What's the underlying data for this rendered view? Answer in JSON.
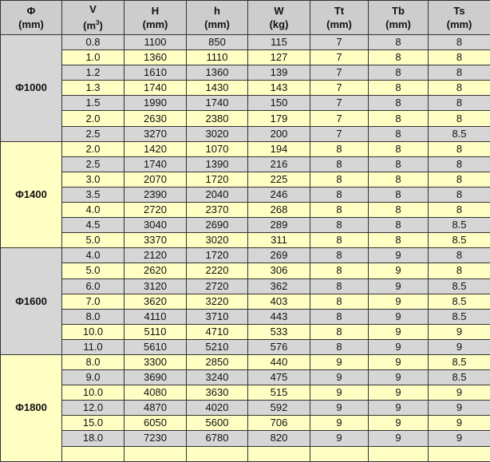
{
  "headers": [
    {
      "name": "Φ",
      "unit": "(mm)"
    },
    {
      "name": "V",
      "unit_pre": "(m",
      "unit_sup": "3",
      "unit_post": ")"
    },
    {
      "name": "H",
      "unit": "(mm)"
    },
    {
      "name": "h",
      "unit": "(mm)"
    },
    {
      "name": "W",
      "unit": "(kg)"
    },
    {
      "name": "Tt",
      "unit": "(mm)"
    },
    {
      "name": "Tb",
      "unit": "(mm)"
    },
    {
      "name": "Ts",
      "unit": "(mm)"
    }
  ],
  "groups": [
    {
      "label": "Φ1000",
      "rows": [
        [
          "0.8",
          "1100",
          "850",
          "115",
          "7",
          "8",
          "8"
        ],
        [
          "1.0",
          "1360",
          "1110",
          "127",
          "7",
          "8",
          "8"
        ],
        [
          "1.2",
          "1610",
          "1360",
          "139",
          "7",
          "8",
          "8"
        ],
        [
          "1.3",
          "1740",
          "1430",
          "143",
          "7",
          "8",
          "8"
        ],
        [
          "1.5",
          "1990",
          "1740",
          "150",
          "7",
          "8",
          "8"
        ],
        [
          "2.0",
          "2630",
          "2380",
          "179",
          "7",
          "8",
          "8"
        ],
        [
          "2.5",
          "3270",
          "3020",
          "200",
          "7",
          "8",
          "8.5"
        ]
      ]
    },
    {
      "label": "Φ1400",
      "rows": [
        [
          "2.0",
          "1420",
          "1070",
          "194",
          "8",
          "8",
          "8"
        ],
        [
          "2.5",
          "1740",
          "1390",
          "216",
          "8",
          "8",
          "8"
        ],
        [
          "3.0",
          "2070",
          "1720",
          "225",
          "8",
          "8",
          "8"
        ],
        [
          "3.5",
          "2390",
          "2040",
          "246",
          "8",
          "8",
          "8"
        ],
        [
          "4.0",
          "2720",
          "2370",
          "268",
          "8",
          "8",
          "8"
        ],
        [
          "4.5",
          "3040",
          "2690",
          "289",
          "8",
          "8",
          "8.5"
        ],
        [
          "5.0",
          "3370",
          "3020",
          "311",
          "8",
          "8",
          "8.5"
        ]
      ]
    },
    {
      "label": "Φ1600",
      "rows": [
        [
          "4.0",
          "2120",
          "1720",
          "269",
          "8",
          "9",
          "8"
        ],
        [
          "5.0",
          "2620",
          "2220",
          "306",
          "8",
          "9",
          "8"
        ],
        [
          "6.0",
          "3120",
          "2720",
          "362",
          "8",
          "9",
          "8.5"
        ],
        [
          "7.0",
          "3620",
          "3220",
          "403",
          "8",
          "9",
          "8.5"
        ],
        [
          "8.0",
          "4110",
          "3710",
          "443",
          "8",
          "9",
          "8.5"
        ],
        [
          "10.0",
          "5110",
          "4710",
          "533",
          "8",
          "9",
          "9"
        ],
        [
          "11.0",
          "5610",
          "5210",
          "576",
          "8",
          "9",
          "9"
        ]
      ]
    },
    {
      "label": "Φ1800",
      "rows": [
        [
          "8.0",
          "3300",
          "2850",
          "440",
          "9",
          "9",
          "8.5"
        ],
        [
          "9.0",
          "3690",
          "3240",
          "475",
          "9",
          "9",
          "8.5"
        ],
        [
          "10.0",
          "4080",
          "3630",
          "515",
          "9",
          "9",
          "9"
        ],
        [
          "12.0",
          "4870",
          "4020",
          "592",
          "9",
          "9",
          "9"
        ],
        [
          "15.0",
          "6050",
          "5600",
          "706",
          "9",
          "9",
          "9"
        ],
        [
          "18.0",
          "7230",
          "6780",
          "820",
          "9",
          "9",
          "9"
        ],
        [
          "",
          "",
          "",
          "",
          "",
          "",
          ""
        ]
      ]
    }
  ],
  "colors": {
    "header": "#cdcdcd",
    "gray_row": "#d6d6d6",
    "yellow_row": "#ffffc4"
  }
}
